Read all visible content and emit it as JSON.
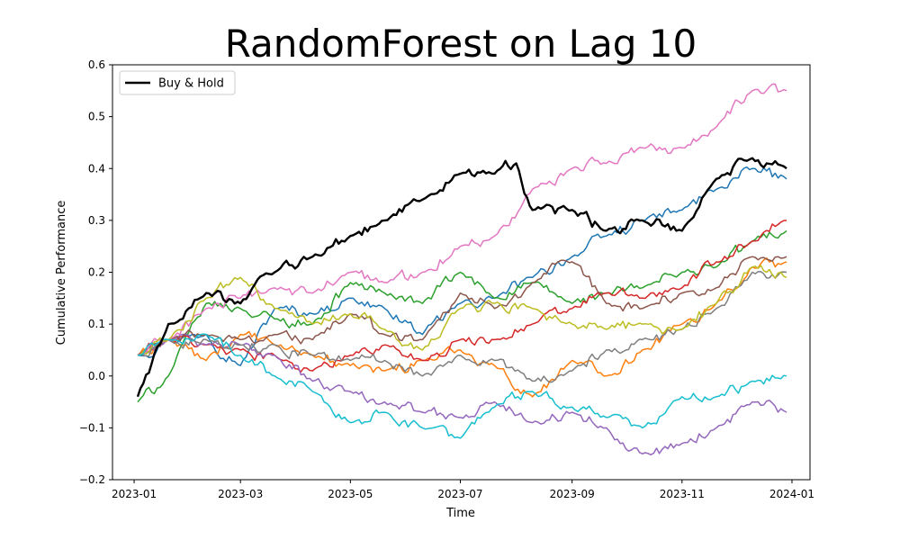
{
  "chart_data": {
    "type": "line",
    "title": "RandomForest on Lag 10",
    "xlabel": "Time",
    "ylabel": "Cumulative Performance",
    "x_type": "date",
    "xlim": [
      "2022-12-20",
      "2024-01-11"
    ],
    "ylim": [
      -0.2,
      0.6
    ],
    "x_ticks": [
      "2023-01-01",
      "2023-03-01",
      "2023-05-01",
      "2023-07-01",
      "2023-09-01",
      "2023-11-01",
      "2024-01-01"
    ],
    "x_tick_labels": [
      "2023-01",
      "2023-03",
      "2023-05",
      "2023-07",
      "2023-09",
      "2023-11",
      "2024-01"
    ],
    "y_ticks": [
      -0.2,
      -0.1,
      0.0,
      0.1,
      0.2,
      0.3,
      0.4,
      0.5,
      0.6
    ],
    "y_tick_labels": [
      "−0.2",
      "−0.1",
      "0.0",
      "0.1",
      "0.2",
      "0.3",
      "0.4",
      "0.5",
      "0.6"
    ],
    "grid": false,
    "legend": {
      "position": "top-left",
      "entries": [
        "Buy & Hold"
      ]
    },
    "series": [
      {
        "color": "#1f77b4",
        "x": [
          "2023-01-03",
          "2023-01-20",
          "2023-02-10",
          "2023-03-01",
          "2023-03-20",
          "2023-04-10",
          "2023-05-01",
          "2023-05-20",
          "2023-06-10",
          "2023-07-01",
          "2023-07-20",
          "2023-08-10",
          "2023-09-01",
          "2023-09-20",
          "2023-10-10",
          "2023-11-01",
          "2023-11-20",
          "2023-12-10",
          "2023-12-29"
        ],
        "y": [
          0.04,
          0.07,
          0.08,
          0.02,
          0.13,
          0.12,
          0.15,
          0.13,
          0.08,
          0.14,
          0.15,
          0.19,
          0.23,
          0.27,
          0.3,
          0.32,
          0.36,
          0.4,
          0.38
        ]
      },
      {
        "color": "#ff7f0e",
        "x": [
          "2023-01-03",
          "2023-01-20",
          "2023-02-10",
          "2023-03-01",
          "2023-03-20",
          "2023-04-10",
          "2023-05-01",
          "2023-05-20",
          "2023-06-10",
          "2023-07-01",
          "2023-07-20",
          "2023-08-10",
          "2023-09-01",
          "2023-09-20",
          "2023-10-10",
          "2023-11-01",
          "2023-11-20",
          "2023-12-10",
          "2023-12-29"
        ],
        "y": [
          0.04,
          0.07,
          0.03,
          0.08,
          0.06,
          0.04,
          0.02,
          0.01,
          0.03,
          0.05,
          0.02,
          -0.04,
          0.03,
          0.0,
          0.05,
          0.1,
          0.14,
          0.21,
          0.22
        ]
      },
      {
        "color": "#2ca02c",
        "x": [
          "2023-01-03",
          "2023-01-20",
          "2023-02-10",
          "2023-03-01",
          "2023-03-20",
          "2023-04-10",
          "2023-05-01",
          "2023-05-20",
          "2023-06-10",
          "2023-07-01",
          "2023-07-20",
          "2023-08-10",
          "2023-09-01",
          "2023-09-20",
          "2023-10-10",
          "2023-11-01",
          "2023-11-20",
          "2023-12-10",
          "2023-12-29"
        ],
        "y": [
          -0.05,
          0.0,
          0.14,
          0.13,
          0.11,
          0.1,
          0.18,
          0.16,
          0.14,
          0.2,
          0.15,
          0.18,
          0.14,
          0.16,
          0.17,
          0.2,
          0.21,
          0.26,
          0.28
        ]
      },
      {
        "color": "#d62728",
        "x": [
          "2023-01-03",
          "2023-01-20",
          "2023-02-10",
          "2023-03-01",
          "2023-03-20",
          "2023-04-10",
          "2023-05-01",
          "2023-05-20",
          "2023-06-10",
          "2023-07-01",
          "2023-07-20",
          "2023-08-10",
          "2023-09-01",
          "2023-09-20",
          "2023-10-10",
          "2023-11-01",
          "2023-11-20",
          "2023-12-10",
          "2023-12-29"
        ],
        "y": [
          0.04,
          0.07,
          0.06,
          0.05,
          0.04,
          0.01,
          0.04,
          0.06,
          0.03,
          0.07,
          0.07,
          0.1,
          0.13,
          0.16,
          0.15,
          0.17,
          0.22,
          0.26,
          0.3
        ]
      },
      {
        "color": "#9467bd",
        "x": [
          "2023-01-03",
          "2023-01-20",
          "2023-02-10",
          "2023-03-01",
          "2023-03-20",
          "2023-04-10",
          "2023-05-01",
          "2023-05-20",
          "2023-06-10",
          "2023-07-01",
          "2023-07-20",
          "2023-08-10",
          "2023-09-01",
          "2023-09-20",
          "2023-10-10",
          "2023-11-01",
          "2023-11-20",
          "2023-12-10",
          "2023-12-29"
        ],
        "y": [
          0.04,
          0.07,
          0.06,
          0.06,
          0.04,
          -0.01,
          -0.03,
          -0.05,
          -0.07,
          -0.08,
          -0.05,
          -0.09,
          -0.07,
          -0.1,
          -0.15,
          -0.13,
          -0.1,
          -0.05,
          -0.07
        ]
      },
      {
        "color": "#8c564b",
        "x": [
          "2023-01-03",
          "2023-01-20",
          "2023-02-10",
          "2023-03-01",
          "2023-03-20",
          "2023-04-10",
          "2023-05-01",
          "2023-05-20",
          "2023-06-10",
          "2023-07-01",
          "2023-07-20",
          "2023-08-10",
          "2023-09-01",
          "2023-09-20",
          "2023-10-10",
          "2023-11-01",
          "2023-11-20",
          "2023-12-10",
          "2023-12-29"
        ],
        "y": [
          0.04,
          0.07,
          0.08,
          0.07,
          0.08,
          0.07,
          0.12,
          0.08,
          0.07,
          0.16,
          0.13,
          0.18,
          0.22,
          0.14,
          0.13,
          0.16,
          0.17,
          0.23,
          0.23
        ]
      },
      {
        "color": "#e377c2",
        "x": [
          "2023-01-03",
          "2023-01-20",
          "2023-02-10",
          "2023-03-01",
          "2023-03-20",
          "2023-04-10",
          "2023-05-01",
          "2023-05-20",
          "2023-06-10",
          "2023-07-01",
          "2023-07-20",
          "2023-08-10",
          "2023-09-01",
          "2023-09-20",
          "2023-10-10",
          "2023-11-01",
          "2023-11-20",
          "2023-12-10",
          "2023-12-29"
        ],
        "y": [
          0.04,
          0.07,
          0.13,
          0.15,
          0.17,
          0.16,
          0.2,
          0.18,
          0.2,
          0.25,
          0.27,
          0.36,
          0.4,
          0.41,
          0.44,
          0.44,
          0.48,
          0.55,
          0.55
        ]
      },
      {
        "color": "#7f7f7f",
        "x": [
          "2023-01-03",
          "2023-01-20",
          "2023-02-10",
          "2023-03-01",
          "2023-03-20",
          "2023-04-10",
          "2023-05-01",
          "2023-05-20",
          "2023-06-10",
          "2023-07-01",
          "2023-07-20",
          "2023-08-10",
          "2023-09-01",
          "2023-09-20",
          "2023-10-10",
          "2023-11-01",
          "2023-11-20",
          "2023-12-10",
          "2023-12-29"
        ],
        "y": [
          0.04,
          0.07,
          0.07,
          0.06,
          0.06,
          0.04,
          0.03,
          0.03,
          0.0,
          0.04,
          0.03,
          -0.01,
          0.01,
          0.05,
          0.07,
          0.09,
          0.13,
          0.2,
          0.2
        ]
      },
      {
        "color": "#bcbd22",
        "x": [
          "2023-01-03",
          "2023-01-20",
          "2023-02-10",
          "2023-03-01",
          "2023-03-20",
          "2023-04-10",
          "2023-05-01",
          "2023-05-20",
          "2023-06-10",
          "2023-07-01",
          "2023-07-20",
          "2023-08-10",
          "2023-09-01",
          "2023-09-20",
          "2023-10-10",
          "2023-11-01",
          "2023-11-20",
          "2023-12-10",
          "2023-12-29"
        ],
        "y": [
          0.04,
          0.07,
          0.15,
          0.19,
          0.13,
          0.1,
          0.12,
          0.09,
          0.05,
          0.13,
          0.14,
          0.13,
          0.1,
          0.09,
          0.1,
          0.09,
          0.14,
          0.21,
          0.19
        ]
      },
      {
        "color": "#17becf",
        "x": [
          "2023-01-03",
          "2023-01-20",
          "2023-02-10",
          "2023-03-01",
          "2023-03-20",
          "2023-04-10",
          "2023-05-01",
          "2023-05-20",
          "2023-06-10",
          "2023-07-01",
          "2023-07-20",
          "2023-08-10",
          "2023-09-01",
          "2023-09-20",
          "2023-10-10",
          "2023-11-01",
          "2023-11-20",
          "2023-12-10",
          "2023-12-29"
        ],
        "y": [
          0.04,
          0.07,
          0.08,
          0.04,
          0.0,
          -0.03,
          -0.09,
          -0.07,
          -0.1,
          -0.12,
          -0.06,
          -0.03,
          -0.06,
          -0.08,
          -0.1,
          -0.04,
          -0.04,
          -0.01,
          0.0
        ]
      },
      {
        "name": "Buy & Hold",
        "color": "#000000",
        "x": [
          "2023-01-03",
          "2023-01-20",
          "2023-02-10",
          "2023-03-01",
          "2023-03-20",
          "2023-04-10",
          "2023-05-01",
          "2023-05-20",
          "2023-06-10",
          "2023-07-01",
          "2023-07-20",
          "2023-08-01",
          "2023-08-10",
          "2023-09-01",
          "2023-09-20",
          "2023-10-10",
          "2023-11-01",
          "2023-11-20",
          "2023-12-10",
          "2023-12-29"
        ],
        "y": [
          -0.04,
          0.1,
          0.16,
          0.14,
          0.2,
          0.23,
          0.27,
          0.3,
          0.34,
          0.39,
          0.39,
          0.41,
          0.32,
          0.32,
          0.28,
          0.3,
          0.28,
          0.38,
          0.42,
          0.4
        ]
      }
    ]
  }
}
